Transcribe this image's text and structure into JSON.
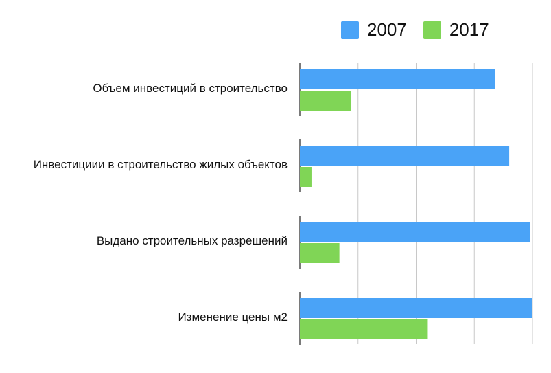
{
  "chart_data": {
    "type": "bar",
    "orientation": "horizontal",
    "categories": [
      "Объем инвестиций в строительство",
      "Инвестициии в строительство жилых объектов",
      "Выдано строительных разрешений",
      "Изменение цены м2"
    ],
    "series": [
      {
        "name": "2007",
        "color": "#4aa3f7",
        "values": [
          84,
          90,
          99,
          100
        ]
      },
      {
        "name": "2017",
        "color": "#80d556",
        "values": [
          22,
          5,
          17,
          55
        ]
      }
    ],
    "xlim": [
      0,
      100
    ],
    "grid": true,
    "legend": "top-right"
  }
}
